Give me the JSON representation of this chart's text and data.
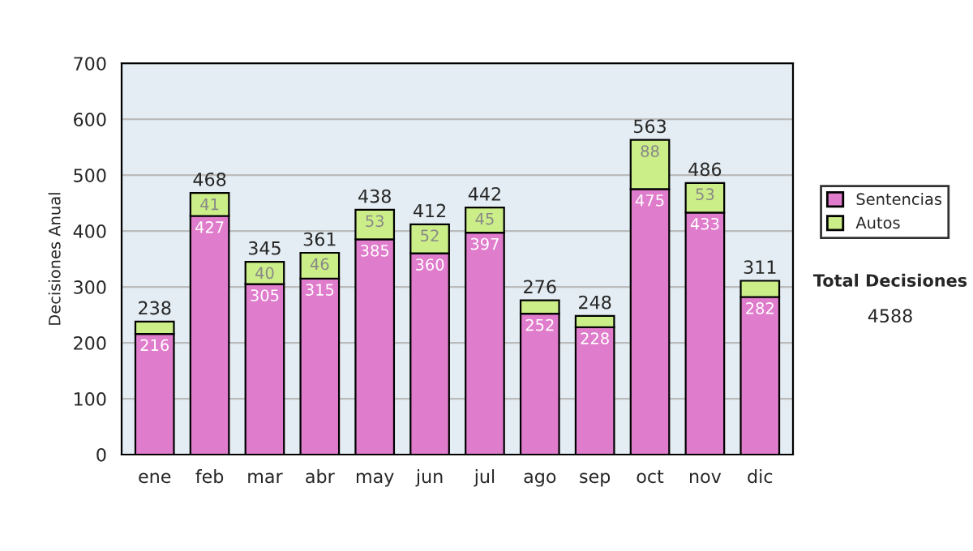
{
  "chart_data": {
    "type": "bar",
    "stacked": true,
    "ylabel": "Decisiones Anual",
    "categories": [
      "ene",
      "feb",
      "mar",
      "abr",
      "may",
      "jun",
      "jul",
      "ago",
      "sep",
      "oct",
      "nov",
      "dic"
    ],
    "series": [
      {
        "name": "Sentencias",
        "color": "#e07ccc",
        "values": [
          216,
          427,
          305,
          315,
          385,
          360,
          397,
          252,
          228,
          475,
          433,
          282
        ],
        "value_labels": [
          "216",
          "427",
          "305",
          "315",
          "385",
          "360",
          "397",
          "252",
          "228",
          "475",
          "433",
          "282"
        ]
      },
      {
        "name": "Autos",
        "color": "#ccee88",
        "values": [
          22,
          41,
          40,
          46,
          53,
          52,
          45,
          24,
          20,
          88,
          53,
          29
        ],
        "value_labels": [
          null,
          "41",
          "40",
          "46",
          "53",
          "52",
          "45",
          null,
          null,
          "88",
          "53",
          null
        ]
      }
    ],
    "totals": [
      "238",
      "468",
      "345",
      "361",
      "438",
      "412",
      "442",
      "276",
      "248",
      "563",
      "486",
      "311"
    ],
    "ylim": [
      0,
      700
    ],
    "yticks": [
      0,
      100,
      200,
      300,
      400,
      500,
      600,
      700
    ],
    "grid": "y",
    "legend": "right",
    "annotations": [
      "Total Decisiones",
      "4588"
    ]
  }
}
